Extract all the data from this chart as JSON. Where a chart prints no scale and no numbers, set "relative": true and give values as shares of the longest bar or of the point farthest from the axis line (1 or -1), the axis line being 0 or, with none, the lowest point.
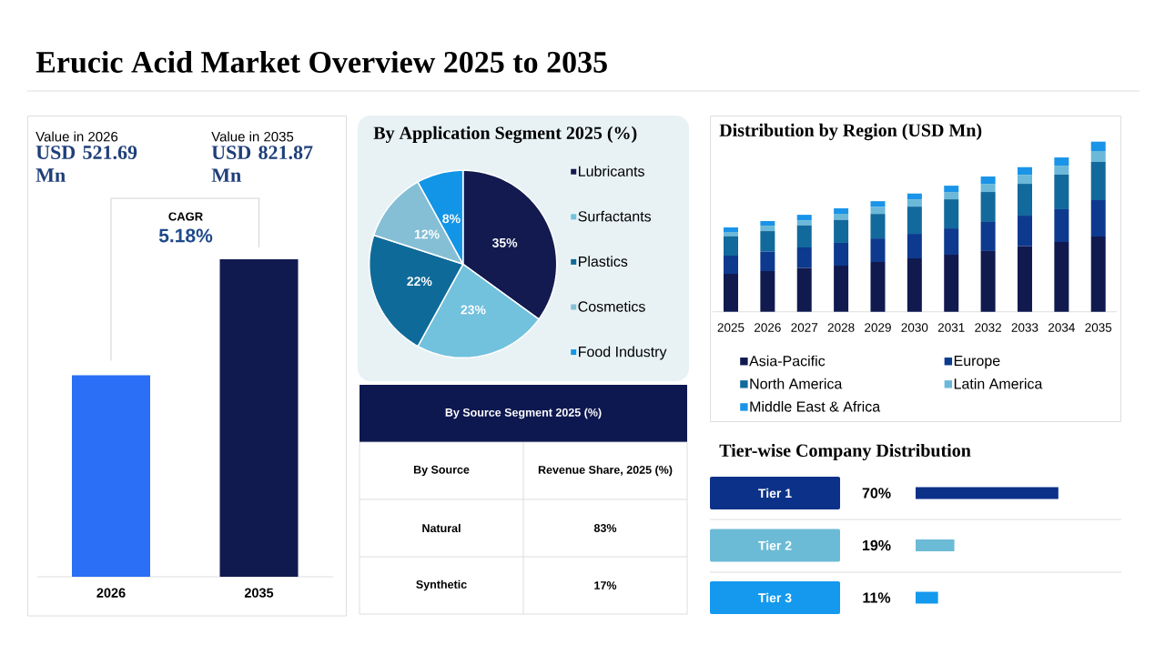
{
  "chart_data": [
    {
      "type": "bar",
      "annotations": [
        "Erucic Acid Market Overview 2025 to 2035",
        "Value in 2026",
        "Value in 2035",
        "CAGR",
        "5.18%"
      ],
      "categories": [
        "2026",
        "2035"
      ],
      "values": [
        521.69,
        821.87
      ],
      "value_labels": [
        "USD 521.69 Mn",
        "USD 821.87 Mn"
      ],
      "colors": [
        "#2a6ff5",
        "#111a4f"
      ],
      "tick_labels": "x"
    },
    {
      "type": "pie",
      "title": "By Application Segment 2025 (%)",
      "categories": [
        "Lubricants",
        "Surfactants",
        "Plastics",
        "Cosmetics",
        "Food Industry"
      ],
      "values": [
        35,
        23,
        22,
        12,
        8
      ],
      "value_labels": [
        "35%",
        "23%",
        "22%",
        "12%",
        "8%"
      ],
      "colors": [
        "#121a4f",
        "#72c1dd",
        "#0e6a99",
        "#85bfd6",
        "#1295e6"
      ],
      "legend": "right"
    },
    {
      "type": "bar",
      "title": "Distribution by Region (USD Mn)",
      "stacked": true,
      "relative": true,
      "categories": [
        "2025",
        "2026",
        "2027",
        "2028",
        "2029",
        "2030",
        "2031",
        "2032",
        "2033",
        "2034",
        "2035"
      ],
      "series": [
        {
          "name": "Asia-Pacific",
          "color": "#111a4f",
          "values": [
            0.223,
            0.239,
            0.257,
            0.271,
            0.292,
            0.314,
            0.335,
            0.357,
            0.385,
            0.41,
            0.442
          ]
        },
        {
          "name": "Europe",
          "color": "#0d3a8e",
          "values": [
            0.107,
            0.114,
            0.121,
            0.134,
            0.139,
            0.144,
            0.155,
            0.171,
            0.18,
            0.193,
            0.214
          ]
        },
        {
          "name": "North America",
          "color": "#12699c",
          "values": [
            0.114,
            0.121,
            0.13,
            0.135,
            0.144,
            0.16,
            0.171,
            0.176,
            0.187,
            0.203,
            0.225
          ]
        },
        {
          "name": "Latin America",
          "color": "#6cb8d8",
          "values": [
            0.025,
            0.032,
            0.03,
            0.036,
            0.041,
            0.043,
            0.043,
            0.048,
            0.053,
            0.053,
            0.064
          ]
        },
        {
          "name": "Middle East & Africa",
          "color": "#1a94e8",
          "values": [
            0.027,
            0.027,
            0.032,
            0.032,
            0.034,
            0.034,
            0.037,
            0.043,
            0.045,
            0.048,
            0.055
          ]
        }
      ],
      "legend": "bottom"
    },
    {
      "type": "other",
      "title": "By Source Segment 2025 (%)",
      "xlabel": "By Source",
      "ylabel": "Revenue Share, 2025 (%)",
      "categories": [
        "Natural",
        "Synthetic"
      ],
      "value_labels": [
        "83%",
        "17%"
      ]
    },
    {
      "type": "bar",
      "title": "Tier-wise Company Distribution",
      "orientation": "horizontal",
      "categories": [
        "Tier 1",
        "Tier 2",
        "Tier 3"
      ],
      "values": [
        70,
        19,
        11
      ],
      "value_labels": [
        "70%",
        "19%",
        "11%"
      ],
      "colors": [
        "#0c3189",
        "#6cbbd6",
        "#1499ee"
      ],
      "xlim": [
        0,
        100
      ],
      "tick_labels": "y"
    }
  ]
}
